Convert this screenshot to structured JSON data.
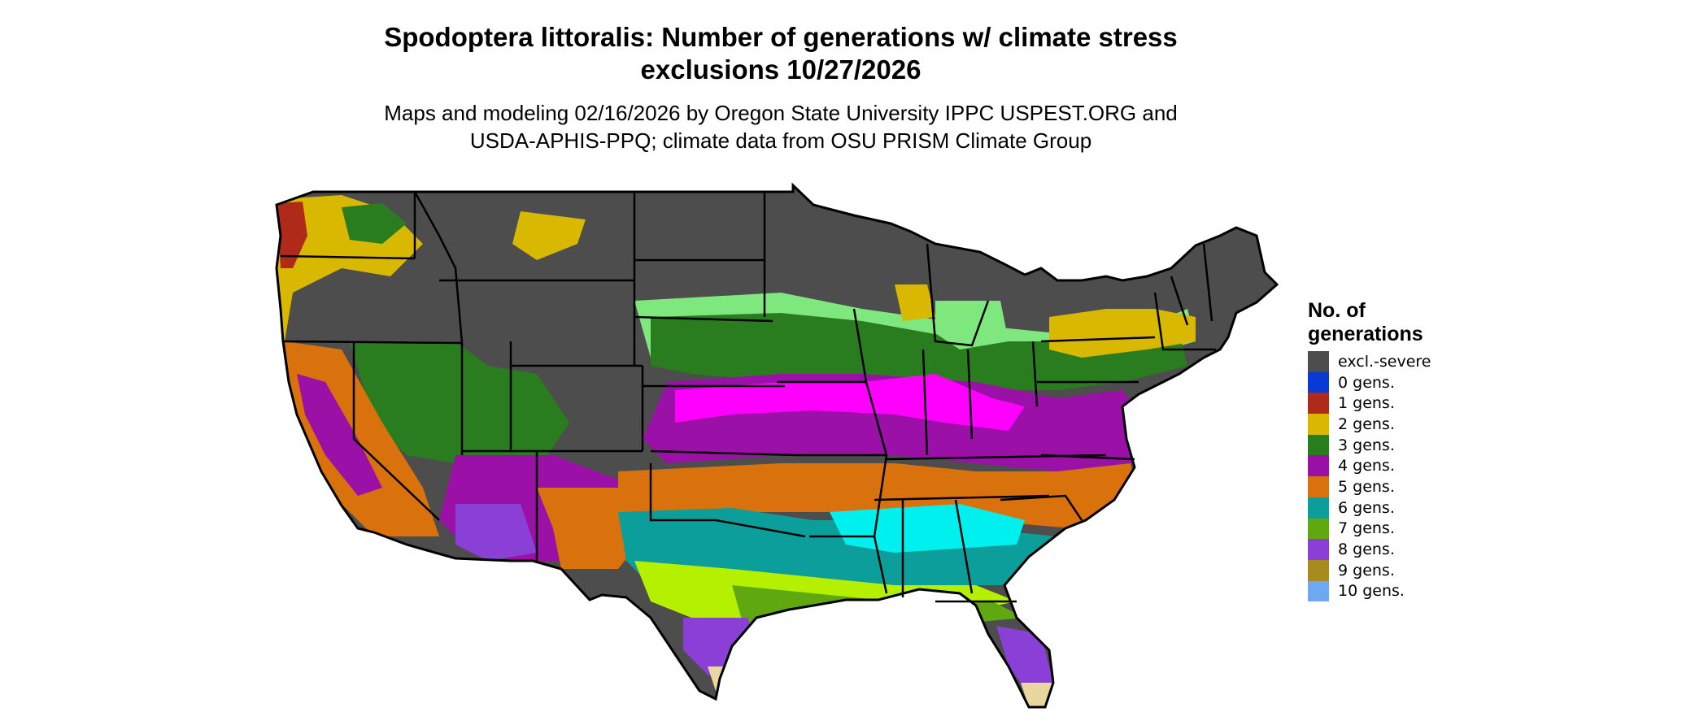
{
  "title_line1": "Spodoptera littoralis: Number of generations w/ climate stress",
  "title_line2": "exclusions 10/27/2026",
  "subtitle_line1": "Maps and modeling 02/16/2026 by Oregon State University IPPC USPEST.ORG and",
  "subtitle_line2": "USDA-APHIS-PPQ; climate data from OSU PRISM Climate Group",
  "legend": {
    "title_line1": "No. of",
    "title_line2": "generations",
    "items": [
      {
        "label": "excl.-severe",
        "color": "#4d4d4d"
      },
      {
        "label": "0 gens.",
        "color": "#0a3ad6"
      },
      {
        "label": "1 gens.",
        "color": "#b02a1a"
      },
      {
        "label": "2 gens.",
        "color": "#d8b800"
      },
      {
        "label": "3 gens.",
        "color": "#2a7d1f"
      },
      {
        "label": "4 gens.",
        "color": "#9b10a6"
      },
      {
        "label": "5 gens.",
        "color": "#d9720c"
      },
      {
        "label": "6 gens.",
        "color": "#0c9e9a"
      },
      {
        "label": "7 gens.",
        "color": "#5fa80f"
      },
      {
        "label": "8 gens.",
        "color": "#8a3fd6"
      },
      {
        "label": "9 gens.",
        "color": "#a88b1f"
      },
      {
        "label": "10 gens.",
        "color": "#6ea8f0"
      }
    ]
  },
  "map": {
    "region": "Contiguous United States",
    "highlight_colors": {
      "magenta_band": "#ff00ff",
      "light_green": "#7ee87e",
      "cyan": "#00f0f0",
      "yellow_green": "#b4f000",
      "tan": "#e8d8a0"
    }
  }
}
